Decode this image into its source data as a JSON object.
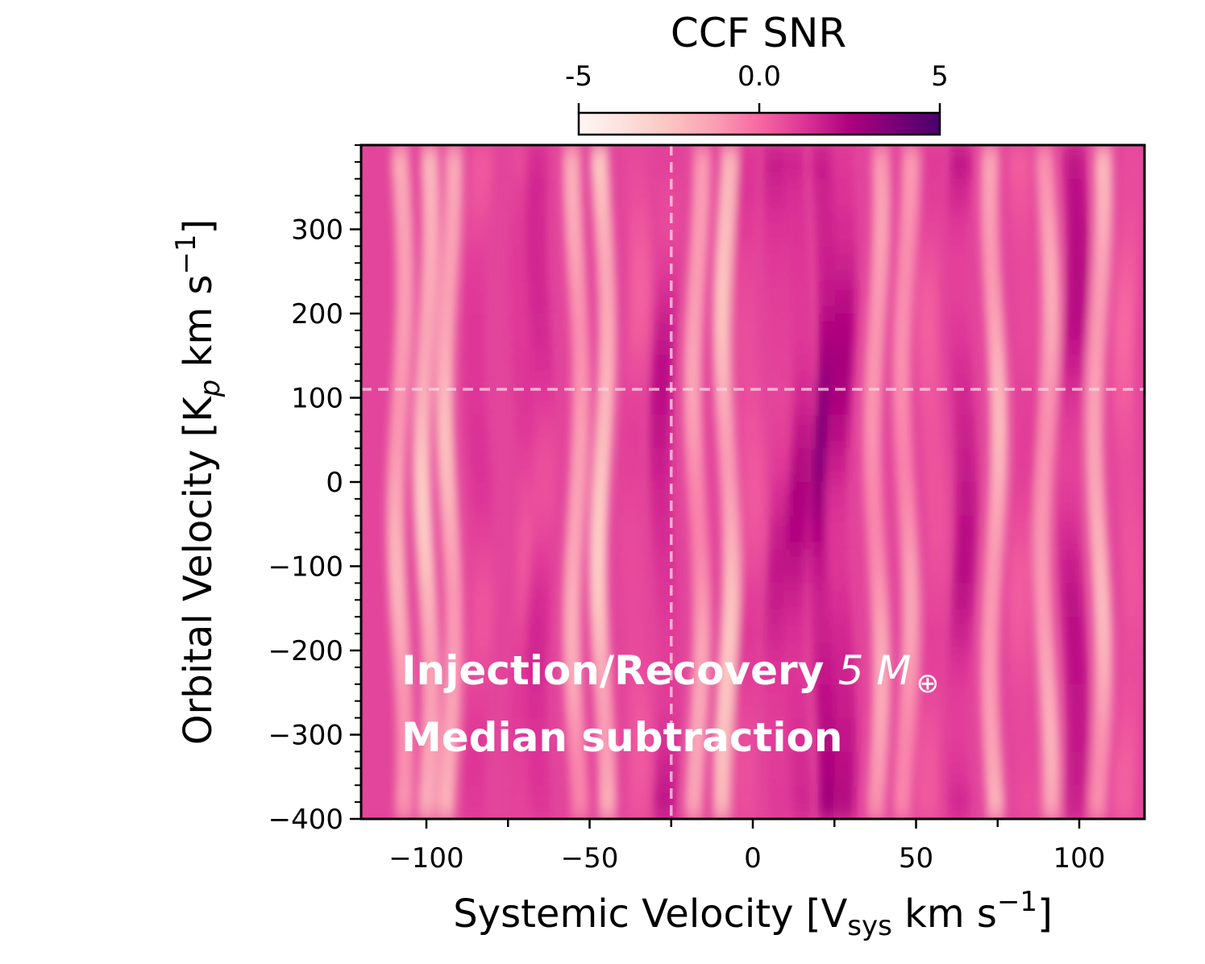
{
  "chart_data": {
    "type": "heatmap",
    "title": "",
    "xlabel": "Systemic Velocity [V",
    "xlabel_sub": "sys",
    "xlabel_unit": " km s",
    "xlabel_sup": "−1",
    "xlabel_close": "]",
    "ylabel": "Orbital Velocity [K",
    "ylabel_sub": "p",
    "ylabel_unit": " km s",
    "ylabel_sup": "−1",
    "ylabel_close": "]",
    "xlim": [
      -120,
      120
    ],
    "ylim": [
      -400,
      400
    ],
    "x_ticks": [
      -100,
      -50,
      0,
      50,
      100
    ],
    "x_tick_labels": [
      "−100",
      "−50",
      "0",
      "50",
      "100"
    ],
    "x_minor_ticks": [
      -75,
      -25,
      25,
      75
    ],
    "y_ticks": [
      -400,
      -300,
      -200,
      -100,
      0,
      100,
      200,
      300
    ],
    "y_tick_labels": [
      "−400",
      "−300",
      "−200",
      "−100",
      "0",
      "100",
      "200",
      "300"
    ],
    "colorbar": {
      "label": "CCF SNR",
      "range": [
        -5,
        5
      ],
      "ticks": [
        -5,
        0,
        5
      ],
      "tick_labels": [
        "-5",
        "0.0",
        "5"
      ],
      "colormap": "RdPu",
      "colors": [
        "#fff7f3",
        "#fde0dd",
        "#fcc5c0",
        "#fa9fb5",
        "#f768a1",
        "#dd3497",
        "#ae017e",
        "#7a0177",
        "#49006a"
      ]
    },
    "reference_lines": {
      "vsys": -25,
      "kp": 110
    },
    "vertical_streaks": [
      {
        "vsys": -108,
        "snr": -1.8
      },
      {
        "vsys": -100,
        "snr": -2.6
      },
      {
        "vsys": -93,
        "snr": -2.2
      },
      {
        "vsys": -84,
        "snr": 1.3
      },
      {
        "vsys": -70,
        "snr": 1.2
      },
      {
        "vsys": -65,
        "snr": 1.6
      },
      {
        "vsys": -54,
        "snr": -1.7
      },
      {
        "vsys": -46,
        "snr": -2.8
      },
      {
        "vsys": -36,
        "snr": 0.9
      },
      {
        "vsys": -27,
        "snr": 2.0
      },
      {
        "vsys": -17,
        "snr": -1.5
      },
      {
        "vsys": -8,
        "snr": -2.6
      },
      {
        "vsys": -1,
        "snr": 1.0
      },
      {
        "vsys": 8,
        "snr": 1.8
      },
      {
        "vsys": 14,
        "snr": 2.3
      },
      {
        "vsys": 22,
        "snr": 3.3
      },
      {
        "vsys": 27,
        "snr": 2.4
      },
      {
        "vsys": 38,
        "snr": -1.4
      },
      {
        "vsys": 47,
        "snr": -1.2
      },
      {
        "vsys": 55,
        "snr": 0.8
      },
      {
        "vsys": 64,
        "snr": 2.2
      },
      {
        "vsys": 74,
        "snr": -2.0
      },
      {
        "vsys": 83,
        "snr": 0.9
      },
      {
        "vsys": 90,
        "snr": -1.6
      },
      {
        "vsys": 98,
        "snr": 2.3
      },
      {
        "vsys": 106,
        "snr": -2.0
      },
      {
        "vsys": 115,
        "snr": 0.6
      }
    ],
    "annotations": [
      {
        "text": "Injection/Recovery ",
        "math": "5 M",
        "symbol": "⊕"
      },
      {
        "text": "Median subtraction"
      }
    ]
  }
}
